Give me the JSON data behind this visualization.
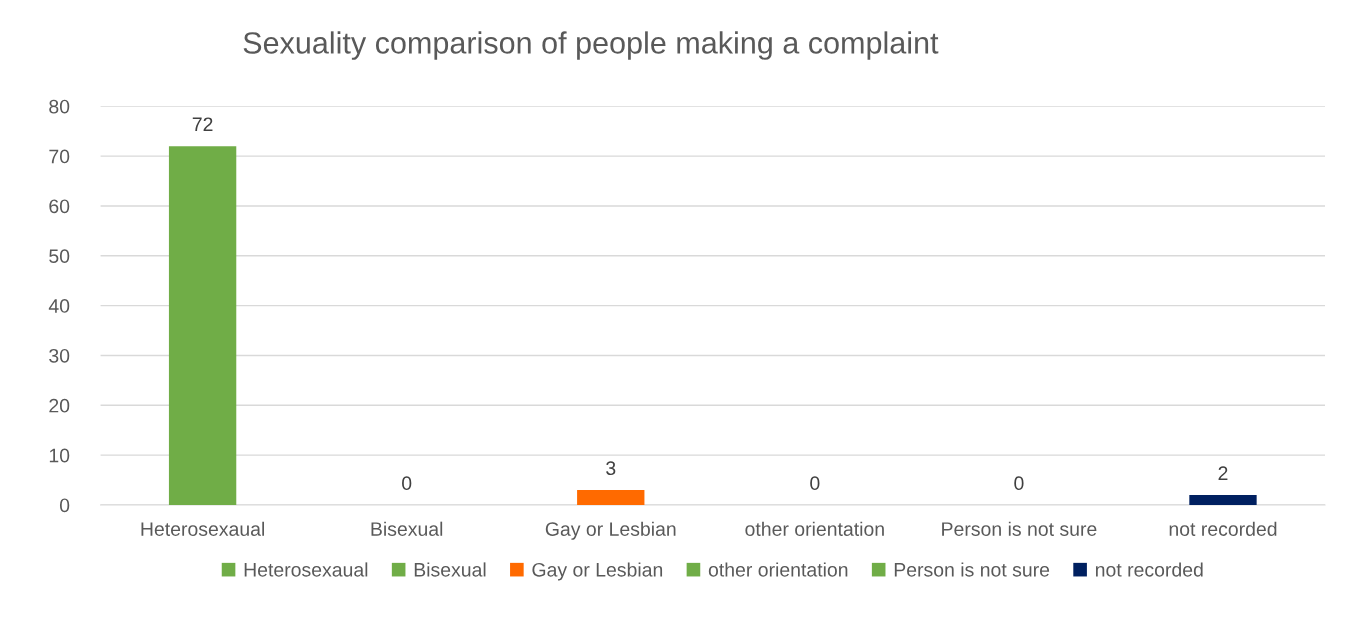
{
  "chart_data": {
    "type": "bar",
    "title": "Sexuality comparison of people making a complaint",
    "categories": [
      "Heterosexaual",
      "Bisexual",
      "Gay or Lesbian",
      "other orientation",
      "Person is not sure",
      "not recorded"
    ],
    "stacked": true,
    "series": [
      {
        "name": "Heterosexaual",
        "color": "#70ad47",
        "values": [
          72,
          null,
          null,
          null,
          null,
          null
        ]
      },
      {
        "name": "Bisexual",
        "color": "#70ad47",
        "values": [
          null,
          0,
          null,
          null,
          null,
          null
        ]
      },
      {
        "name": "Gay or Lesbian",
        "color": "#ff6a00",
        "values": [
          null,
          null,
          3,
          null,
          null,
          null
        ]
      },
      {
        "name": "other orientation",
        "color": "#70ad47",
        "values": [
          null,
          null,
          null,
          0,
          null,
          null
        ]
      },
      {
        "name": "Person is not sure",
        "color": "#70ad47",
        "values": [
          null,
          null,
          null,
          null,
          0,
          null
        ]
      },
      {
        "name": "not recorded",
        "color": "#002060",
        "values": [
          null,
          null,
          null,
          null,
          null,
          2
        ]
      }
    ],
    "ylim": [
      0,
      80
    ],
    "yticks": [
      0,
      10,
      20,
      30,
      40,
      50,
      60,
      70,
      80
    ],
    "grid": "y",
    "data_labels": true,
    "legend": "bottom"
  }
}
